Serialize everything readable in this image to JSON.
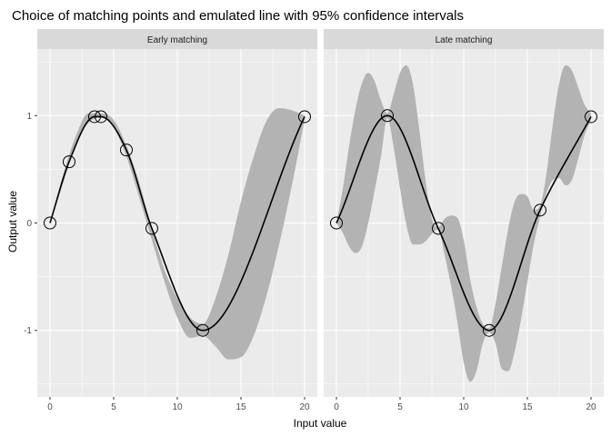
{
  "chart_data": {
    "type": "line",
    "title": "Choice of matching points and emulated line with 95% confidence intervals",
    "xlabel": "Input value",
    "ylabel": "Output value",
    "xlim": [
      -1,
      21
    ],
    "ylim": [
      -1.62,
      1.62
    ],
    "x_ticks": [
      0,
      5,
      10,
      15,
      20
    ],
    "y_ticks": [
      -1,
      0,
      1
    ],
    "grid": true,
    "colors": {
      "panel_bg": "#ebebeb",
      "strip_bg": "#d9d9d9",
      "grid": "#ffffff",
      "ribbon": "#b3b3b3",
      "line": "#000000"
    },
    "panels": [
      {
        "label": "Early matching",
        "points": [
          {
            "x": 0,
            "y": 0
          },
          {
            "x": 1.5,
            "y": 0.57
          },
          {
            "x": 3.5,
            "y": 0.99
          },
          {
            "x": 4,
            "y": 0.99
          },
          {
            "x": 6,
            "y": 0.68
          },
          {
            "x": 8,
            "y": -0.05
          },
          {
            "x": 12,
            "y": -1.0
          },
          {
            "x": 20,
            "y": 0.99
          }
        ],
        "ribbon": {
          "x": [
            0,
            1,
            2,
            3,
            4,
            5,
            6,
            7,
            8,
            9,
            10,
            11,
            12,
            13,
            14,
            15,
            16,
            17,
            18,
            19,
            20
          ],
          "lower": [
            0,
            0.36,
            0.72,
            0.93,
            0.98,
            0.89,
            0.62,
            0.24,
            -0.16,
            -0.55,
            -0.88,
            -1.07,
            -1.05,
            -1.15,
            -1.27,
            -1.25,
            -1.05,
            -0.68,
            -0.2,
            0.35,
            0.96
          ],
          "upper": [
            0,
            0.44,
            0.8,
            1.02,
            1.02,
            0.96,
            0.72,
            0.38,
            -0.05,
            -0.44,
            -0.7,
            -0.88,
            -0.94,
            -0.7,
            -0.3,
            0.2,
            0.62,
            0.95,
            1.07,
            1.05,
            1.0
          ]
        }
      },
      {
        "label": "Late matching",
        "points": [
          {
            "x": 0,
            "y": 0
          },
          {
            "x": 4,
            "y": 1.0
          },
          {
            "x": 8,
            "y": -0.05
          },
          {
            "x": 12,
            "y": -1.0
          },
          {
            "x": 16,
            "y": 0.12
          },
          {
            "x": 20,
            "y": 0.99
          }
        ],
        "ribbon": {
          "x": [
            0,
            0.5,
            1,
            1.5,
            2,
            2.5,
            3,
            3.5,
            4,
            4.5,
            5,
            5.5,
            6,
            6.5,
            7,
            7.5,
            8,
            8.5,
            9,
            9.5,
            10,
            10.5,
            11,
            11.5,
            12,
            12.5,
            13,
            13.5,
            14,
            14.5,
            15,
            15.5,
            16,
            16.5,
            17,
            17.5,
            18,
            18.5,
            19,
            19.5,
            20
          ],
          "lower": [
            0,
            -0.09,
            -0.22,
            -0.28,
            -0.22,
            0.0,
            0.3,
            0.62,
            0.98,
            0.7,
            0.32,
            -0.02,
            -0.2,
            -0.2,
            -0.17,
            -0.1,
            -0.06,
            -0.3,
            -0.58,
            -0.92,
            -1.3,
            -1.48,
            -1.38,
            -1.12,
            -1.02,
            -1.12,
            -1.36,
            -1.38,
            -1.2,
            -0.9,
            -0.55,
            -0.2,
            0.06,
            0.28,
            0.4,
            0.42,
            0.35,
            0.4,
            0.6,
            0.82,
            0.96
          ],
          "upper": [
            0,
            0.32,
            0.72,
            1.06,
            1.3,
            1.4,
            1.32,
            1.14,
            1.02,
            1.2,
            1.4,
            1.47,
            1.3,
            0.88,
            0.4,
            0.04,
            -0.04,
            0.04,
            0.07,
            0.05,
            -0.16,
            -0.52,
            -0.78,
            -0.94,
            -0.98,
            -0.75,
            -0.4,
            -0.05,
            0.2,
            0.27,
            0.25,
            0.12,
            0.16,
            0.46,
            0.92,
            1.3,
            1.47,
            1.42,
            1.26,
            1.1,
            1.02
          ]
        }
      }
    ]
  }
}
